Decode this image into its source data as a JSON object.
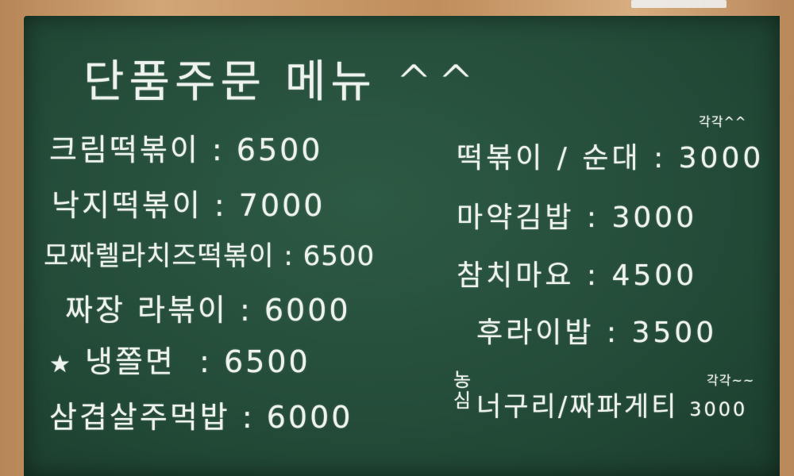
{
  "title": "단품주문 메뉴 ^^",
  "left_items": [
    {
      "name": "크림떡볶이",
      "price": "6500"
    },
    {
      "name": "낙지떡볶이",
      "price": "7000"
    },
    {
      "name": "모짜렐라치즈떡볶이",
      "price": "6500"
    },
    {
      "name": "짜장 라볶이",
      "price": "6000"
    },
    {
      "name": "냉쫄면",
      "price": "6500"
    },
    {
      "name": "삼겹살주먹밥",
      "price": "6000"
    }
  ],
  "star_mark": "★",
  "right_items": [
    {
      "name": "떡볶이 / 순대",
      "price": "3000",
      "note": "각각^^"
    },
    {
      "name": "마약김밥",
      "price": "3000"
    },
    {
      "name": "참치마요",
      "price": "4500"
    },
    {
      "name": "후라이밥",
      "price": "3500"
    },
    {
      "name": "너구리/짜파게티",
      "price": "3000",
      "note": "각각~~",
      "prefix": "농심"
    }
  ]
}
